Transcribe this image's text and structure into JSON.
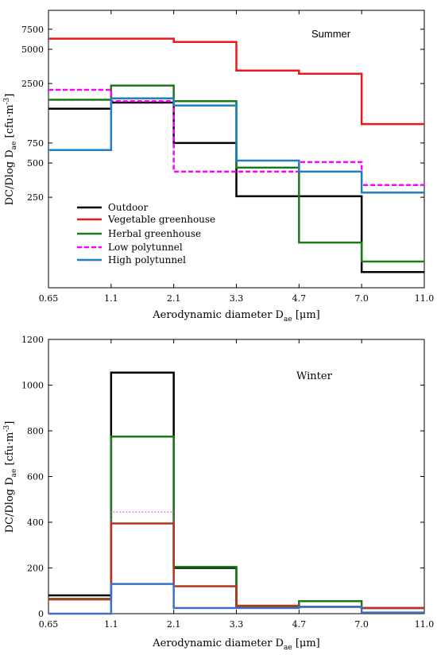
{
  "chart_data": [
    {
      "type": "line",
      "step": true,
      "annotation": "Summer",
      "xlabel_main": "Aerodynamic diameter D",
      "xlabel_sub": "ae",
      "xlabel_unit": " [μm]",
      "ylabel_main": "DC/Dlog D",
      "ylabel_sub": "ae",
      "ylabel_unit": " [cfu·m",
      "ylabel_sup": "-3",
      "ylabel_close": "]",
      "x_ticks": [
        "0.65",
        "1.1",
        "2.1",
        "3.3",
        "4.7",
        "7.0",
        "11.0"
      ],
      "y_scale": "log",
      "y_ticks": [
        {
          "value": 250,
          "label": "250"
        },
        {
          "value": 500,
          "label": "500"
        },
        {
          "value": 750,
          "label": "750"
        },
        {
          "value": 2500,
          "label": "2500"
        },
        {
          "value": 5000,
          "label": "5000"
        },
        {
          "value": 7500,
          "label": "7500"
        }
      ],
      "ylim": [
        40,
        11000
      ],
      "legend": "left-middle",
      "series": [
        {
          "name": "Outdoor",
          "color": "#000000",
          "dash": false,
          "values": [
            1500,
            1700,
            750,
            255,
            255,
            55
          ]
        },
        {
          "name": "Vegetable greenhouse",
          "color": "#e8191c",
          "dash": false,
          "values": [
            6200,
            6200,
            5800,
            3250,
            3050,
            1100
          ]
        },
        {
          "name": "Herbal greenhouse",
          "color": "#1a7a1a",
          "dash": false,
          "values": [
            1800,
            2400,
            1750,
            455,
            100,
            68
          ]
        },
        {
          "name": "Low polytunnel",
          "color": "#ff00ff",
          "dash": true,
          "values": [
            2200,
            1750,
            420,
            420,
            510,
            320
          ]
        },
        {
          "name": "High polytunnel",
          "color": "#1f7fc0",
          "dash": false,
          "values": [
            650,
            1850,
            1600,
            525,
            420,
            275
          ]
        }
      ]
    },
    {
      "type": "line",
      "step": true,
      "annotation": "Winter",
      "xlabel_main": "Aerodynamic diameter D",
      "xlabel_sub": "ae",
      "xlabel_unit": " [μm]",
      "ylabel_main": "DC/Dlog D",
      "ylabel_sub": "ae",
      "ylabel_unit": " [cfu·m",
      "ylabel_sup": "-3",
      "ylabel_close": "]",
      "x_ticks": [
        "0.65",
        "1.1",
        "2.1",
        "3.3",
        "4.7",
        "7.0",
        "11.0"
      ],
      "y_scale": "linear",
      "y_ticks": [
        {
          "value": 0,
          "label": "0"
        },
        {
          "value": 200,
          "label": "200"
        },
        {
          "value": 400,
          "label": "400"
        },
        {
          "value": 600,
          "label": "600"
        },
        {
          "value": 800,
          "label": "800"
        },
        {
          "value": 1000,
          "label": "1000"
        },
        {
          "value": 1200,
          "label": "1200"
        }
      ],
      "ylim": [
        0,
        1200
      ],
      "series": [
        {
          "name": "Outdoor",
          "color": "#000000",
          "dash": false,
          "values": [
            80,
            1055,
            200,
            30,
            30,
            25
          ]
        },
        {
          "name": "Herbal greenhouse",
          "color": "#1a7a1a",
          "dash": false,
          "values": [
            65,
            775,
            205,
            30,
            55,
            25
          ]
        },
        {
          "name": "Low polytunnel",
          "color": "#cc44cc",
          "dash": true,
          "values": [
            60,
            445,
            120,
            35,
            30,
            25
          ]
        },
        {
          "name": "Vegetable greenhouse",
          "color": "#b8341f",
          "dash": false,
          "values": [
            62,
            395,
            120,
            35,
            30,
            25
          ]
        },
        {
          "name": "High polytunnel",
          "color": "#3f6fc4",
          "dash": false,
          "values": [
            0,
            130,
            25,
            25,
            30,
            5
          ]
        }
      ]
    }
  ]
}
